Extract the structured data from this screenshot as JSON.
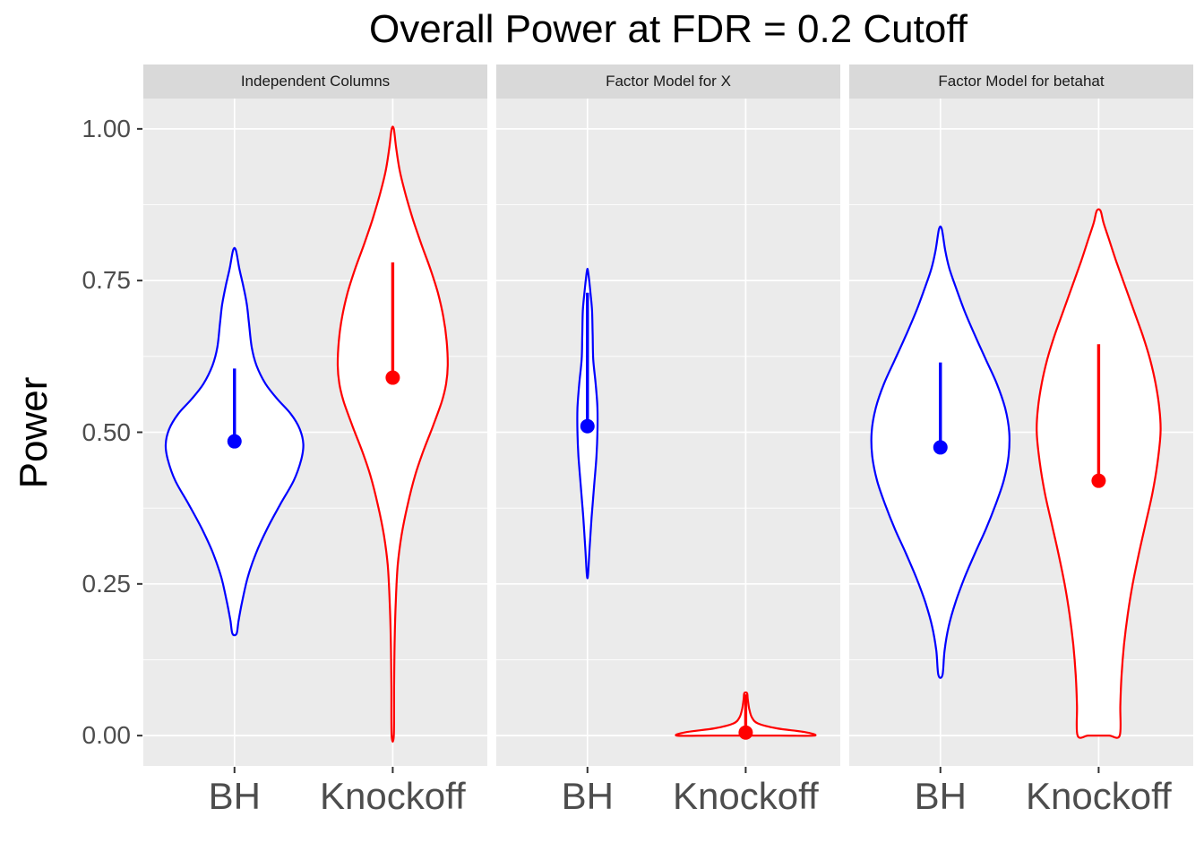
{
  "chart_data": {
    "type": "violin",
    "title": "Overall Power at FDR = 0.2 Cutoff",
    "ylabel": "Power",
    "ylim": [
      0,
      1
    ],
    "y_ticks": [
      {
        "value": 0.0,
        "label": "0.00"
      },
      {
        "value": 0.25,
        "label": "0.25"
      },
      {
        "value": 0.5,
        "label": "0.50"
      },
      {
        "value": 0.75,
        "label": "0.75"
      },
      {
        "value": 1.0,
        "label": "1.00"
      }
    ],
    "y_minor_ticks": [
      0.125,
      0.375,
      0.625,
      0.875
    ],
    "categories": [
      "BH",
      "Knockoff"
    ],
    "series_colors": {
      "BH": "#0000FF",
      "Knockoff": "#FF0000"
    },
    "legend": "none",
    "grid": "on",
    "facets": [
      {
        "label": "Independent Columns",
        "violins": [
          {
            "group": "BH",
            "color": "#0000FF",
            "summary_point": 0.485,
            "segment": [
              0.485,
              0.605
            ],
            "range": [
              0.168,
              0.8
            ],
            "max_halfwidth": 0.2,
            "flat_bottom": false,
            "profile": [
              [
                0.168,
                0.03
              ],
              [
                0.19,
                0.06
              ],
              [
                0.22,
                0.11
              ],
              [
                0.26,
                0.19
              ],
              [
                0.3,
                0.31
              ],
              [
                0.34,
                0.47
              ],
              [
                0.38,
                0.66
              ],
              [
                0.42,
                0.86
              ],
              [
                0.455,
                0.97
              ],
              [
                0.48,
                1.0
              ],
              [
                0.505,
                0.95
              ],
              [
                0.53,
                0.82
              ],
              [
                0.555,
                0.62
              ],
              [
                0.58,
                0.45
              ],
              [
                0.61,
                0.32
              ],
              [
                0.64,
                0.25
              ],
              [
                0.68,
                0.21
              ],
              [
                0.71,
                0.18
              ],
              [
                0.74,
                0.13
              ],
              [
                0.77,
                0.07
              ],
              [
                0.8,
                0.02
              ]
            ]
          },
          {
            "group": "Knockoff",
            "color": "#FF0000",
            "summary_point": 0.59,
            "segment": [
              0.59,
              0.78
            ],
            "range": [
              0.0,
              1.0
            ],
            "max_halfwidth": 0.16,
            "flat_bottom": false,
            "profile": [
              [
                0.0,
                0.02
              ],
              [
                0.08,
                0.025
              ],
              [
                0.16,
                0.035
              ],
              [
                0.22,
                0.055
              ],
              [
                0.28,
                0.09
              ],
              [
                0.33,
                0.16
              ],
              [
                0.38,
                0.27
              ],
              [
                0.43,
                0.41
              ],
              [
                0.47,
                0.56
              ],
              [
                0.51,
                0.73
              ],
              [
                0.55,
                0.89
              ],
              [
                0.58,
                0.97
              ],
              [
                0.61,
                1.0
              ],
              [
                0.65,
                0.98
              ],
              [
                0.69,
                0.92
              ],
              [
                0.73,
                0.82
              ],
              [
                0.77,
                0.68
              ],
              [
                0.81,
                0.52
              ],
              [
                0.85,
                0.37
              ],
              [
                0.89,
                0.24
              ],
              [
                0.93,
                0.13
              ],
              [
                0.97,
                0.06
              ],
              [
                1.0,
                0.02
              ]
            ]
          }
        ]
      },
      {
        "label": "Factor Model for X",
        "violins": [
          {
            "group": "BH",
            "color": "#0000FF",
            "summary_point": 0.51,
            "segment": [
              0.51,
              0.73
            ],
            "range": [
              0.265,
              0.765
            ],
            "max_halfwidth": 0.029,
            "flat_bottom": false,
            "profile": [
              [
                0.265,
                0.06
              ],
              [
                0.31,
                0.22
              ],
              [
                0.36,
                0.42
              ],
              [
                0.41,
                0.66
              ],
              [
                0.46,
                0.9
              ],
              [
                0.5,
                1.0
              ],
              [
                0.54,
                1.0
              ],
              [
                0.58,
                0.82
              ],
              [
                0.62,
                0.58
              ],
              [
                0.66,
                0.52
              ],
              [
                0.7,
                0.46
              ],
              [
                0.73,
                0.3
              ],
              [
                0.765,
                0.06
              ]
            ]
          },
          {
            "group": "Knockoff",
            "color": "#FF0000",
            "summary_point": 0.005,
            "segment": [
              0.005,
              0.068
            ],
            "range": [
              0.0,
              0.07
            ],
            "max_halfwidth": 0.2,
            "flat_bottom": true,
            "profile": [
              [
                0.0,
                1.0
              ],
              [
                0.006,
                0.85
              ],
              [
                0.012,
                0.45
              ],
              [
                0.02,
                0.18
              ],
              [
                0.03,
                0.09
              ],
              [
                0.045,
                0.05
              ],
              [
                0.06,
                0.03
              ],
              [
                0.07,
                0.02
              ]
            ]
          }
        ]
      },
      {
        "label": "Factor Model for betahat",
        "violins": [
          {
            "group": "BH",
            "color": "#0000FF",
            "summary_point": 0.475,
            "segment": [
              0.475,
              0.615
            ],
            "range": [
              0.1,
              0.835
            ],
            "max_halfwidth": 0.2,
            "flat_bottom": false,
            "profile": [
              [
                0.1,
                0.03
              ],
              [
                0.14,
                0.06
              ],
              [
                0.18,
                0.12
              ],
              [
                0.22,
                0.22
              ],
              [
                0.26,
                0.35
              ],
              [
                0.3,
                0.5
              ],
              [
                0.34,
                0.66
              ],
              [
                0.38,
                0.8
              ],
              [
                0.42,
                0.92
              ],
              [
                0.46,
                0.99
              ],
              [
                0.5,
                1.0
              ],
              [
                0.54,
                0.94
              ],
              [
                0.58,
                0.82
              ],
              [
                0.62,
                0.66
              ],
              [
                0.66,
                0.5
              ],
              [
                0.7,
                0.35
              ],
              [
                0.74,
                0.22
              ],
              [
                0.77,
                0.13
              ],
              [
                0.8,
                0.07
              ],
              [
                0.835,
                0.02
              ]
            ]
          },
          {
            "group": "Knockoff",
            "color": "#FF0000",
            "summary_point": 0.42,
            "segment": [
              0.42,
              0.645
            ],
            "range": [
              0.0,
              0.865
            ],
            "max_halfwidth": 0.18,
            "flat_bottom": true,
            "profile": [
              [
                0.0,
                0.34
              ],
              [
                0.05,
                0.35
              ],
              [
                0.1,
                0.37
              ],
              [
                0.15,
                0.41
              ],
              [
                0.2,
                0.47
              ],
              [
                0.25,
                0.55
              ],
              [
                0.3,
                0.65
              ],
              [
                0.35,
                0.76
              ],
              [
                0.4,
                0.87
              ],
              [
                0.45,
                0.95
              ],
              [
                0.5,
                1.0
              ],
              [
                0.54,
                0.98
              ],
              [
                0.58,
                0.92
              ],
              [
                0.62,
                0.83
              ],
              [
                0.66,
                0.71
              ],
              [
                0.7,
                0.57
              ],
              [
                0.74,
                0.43
              ],
              [
                0.78,
                0.29
              ],
              [
                0.82,
                0.16
              ],
              [
                0.845,
                0.08
              ],
              [
                0.865,
                0.03
              ]
            ]
          }
        ]
      }
    ]
  },
  "colors": {
    "panel_bg": "#EBEBEB",
    "strip_bg": "#D9D9D9",
    "grid": "#FFFFFF",
    "axis_text": "#4D4D4D",
    "title_text": "#000000",
    "tick_mark": "#333333",
    "violin_fill": "#FFFFFF",
    "blue": "#0000FF",
    "red": "#FF0000"
  }
}
